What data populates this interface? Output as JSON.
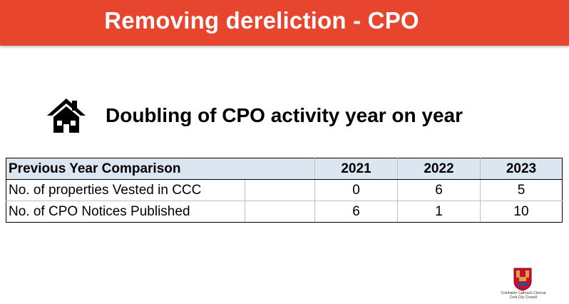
{
  "slide": {
    "title": "Removing dereliction - CPO",
    "subtitle": "Doubling of CPO activity year on year",
    "icon": "house-icon"
  },
  "table": {
    "header": {
      "label": "Previous Year Comparison",
      "years": [
        "2021",
        "2022",
        "2023"
      ]
    },
    "rows": [
      {
        "label": "No. of properties Vested in CCC",
        "values": [
          "0",
          "6",
          "5"
        ]
      },
      {
        "label": "No. of CPO Notices Published",
        "values": [
          "6",
          "1",
          "10"
        ]
      }
    ]
  },
  "logo": {
    "line1": "Comhairle Cathrach Chorcaí",
    "line2": "Cork City Council"
  },
  "colors": {
    "title_bar": "#e8452f",
    "header_fill": "#dce6f1"
  }
}
